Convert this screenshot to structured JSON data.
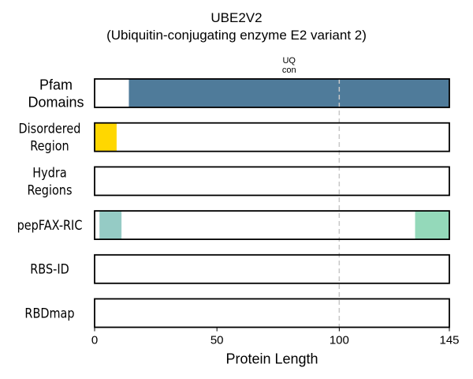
{
  "chart_data": {
    "type": "domain-track",
    "title": "UBE2V2",
    "subtitle": "(Ubiquitin-conjugating enzyme E2 variant 2)",
    "xlabel": "Protein Length",
    "xlim": [
      0,
      145
    ],
    "xticks": [
      0,
      50,
      100,
      145
    ],
    "reference_line_x": 100,
    "tracks": [
      {
        "label": [
          "Pfam",
          "Domains"
        ],
        "segments": [
          {
            "start": 14,
            "end": 145,
            "color": "#4f7b9a",
            "label": [
              "UQ",
              "con"
            ]
          }
        ]
      },
      {
        "label": [
          "Disordered",
          "Region"
        ],
        "segments": [
          {
            "start": 0,
            "end": 9,
            "color": "#ffd700"
          }
        ]
      },
      {
        "label": [
          "Hydra",
          "Regions"
        ],
        "segments": []
      },
      {
        "label": [
          "pepFAX-RIC"
        ],
        "segments": [
          {
            "start": 2,
            "end": 11,
            "color": "#95cbc5"
          },
          {
            "start": 131,
            "end": 145,
            "color": "#94d9ba"
          }
        ]
      },
      {
        "label": [
          "RBS-ID"
        ],
        "segments": []
      },
      {
        "label": [
          "RBDmap"
        ],
        "segments": []
      }
    ]
  }
}
